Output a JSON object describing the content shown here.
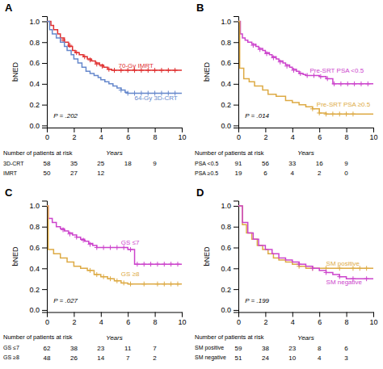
{
  "chart_data": [
    {
      "type": "step",
      "title": "A",
      "ylabel": "bNED",
      "xlabel": "Years",
      "pvalue": "P = .202",
      "xlim": [
        0,
        10
      ],
      "ylim": [
        -0.02,
        1.05
      ],
      "xticks": [
        0,
        2,
        4,
        6,
        8,
        10
      ],
      "yticks": [
        {
          "value": 0.0,
          "label": "0.0"
        },
        0.2,
        0.4,
        0.6,
        0.8,
        {
          "value": 1.0,
          "label": "1.0"
        }
      ],
      "grid": false,
      "series": [
        {
          "name": "70-Gy IMRT",
          "color": "#e03030",
          "x": [
            0,
            0.3,
            0.5,
            0.8,
            1.0,
            1.3,
            1.6,
            1.9,
            2.1,
            2.4,
            2.7,
            3.0,
            3.3,
            3.6,
            3.9,
            4.2,
            4.5,
            4.8,
            5.0,
            10.0
          ],
          "values": [
            1.0,
            0.96,
            0.92,
            0.88,
            0.84,
            0.8,
            0.76,
            0.72,
            0.7,
            0.68,
            0.66,
            0.64,
            0.62,
            0.6,
            0.58,
            0.56,
            0.54,
            0.53,
            0.53,
            0.53
          ],
          "censors_x": [
            1.2,
            1.7,
            2.2,
            2.8,
            3.2,
            3.7,
            4.1,
            4.6,
            5.0,
            5.5,
            6.0,
            6.5,
            7.0,
            7.5,
            8.0,
            8.5,
            9.0,
            9.5
          ],
          "censors_y": [
            0.82,
            0.77,
            0.7,
            0.66,
            0.63,
            0.59,
            0.57,
            0.54,
            0.53,
            0.53,
            0.53,
            0.53,
            0.53,
            0.53,
            0.53,
            0.53,
            0.53,
            0.53
          ],
          "label_x": 5.3,
          "label_y": 0.57
        },
        {
          "name": "64-Gy 3D-CRT",
          "color": "#6688cc",
          "x": [
            0,
            0.2,
            0.4,
            0.7,
            1.0,
            1.3,
            1.5,
            1.8,
            2.0,
            2.3,
            2.6,
            2.9,
            3.2,
            3.5,
            3.8,
            4.0,
            4.3,
            4.6,
            4.9,
            5.2,
            5.5,
            5.8,
            6.0,
            6.5,
            7.0,
            10.0
          ],
          "values": [
            1.0,
            0.92,
            0.88,
            0.84,
            0.8,
            0.76,
            0.72,
            0.68,
            0.64,
            0.6,
            0.56,
            0.52,
            0.5,
            0.48,
            0.46,
            0.44,
            0.42,
            0.4,
            0.38,
            0.36,
            0.34,
            0.32,
            0.31,
            0.31,
            0.31,
            0.31
          ],
          "censors_x": [
            5.5,
            6.0,
            6.5,
            7.0,
            7.5,
            8.0,
            8.5,
            9.0,
            9.5
          ],
          "censors_y": [
            0.34,
            0.31,
            0.31,
            0.31,
            0.31,
            0.31,
            0.31,
            0.31,
            0.31
          ],
          "label_x": 6.5,
          "label_y": 0.26
        }
      ],
      "risk_table": {
        "title": "Number of patients at risk",
        "labels": [
          "3D-CRT",
          "IMRT"
        ],
        "times": [
          0,
          2,
          4,
          6,
          8
        ],
        "values": [
          [
            58,
            35,
            25,
            18,
            9
          ],
          [
            50,
            27,
            12,
            null,
            null
          ]
        ]
      }
    },
    {
      "type": "step",
      "title": "B",
      "ylabel": "bNED",
      "xlabel": "Years",
      "pvalue": "P = .014",
      "xlim": [
        0,
        10
      ],
      "ylim": [
        -0.02,
        1.05
      ],
      "xticks": [
        0,
        2,
        4,
        6,
        8,
        10
      ],
      "yticks": [
        {
          "value": 0.0,
          "label": "0.0"
        },
        0.2,
        0.4,
        0.6,
        0.8,
        {
          "value": 1.0,
          "label": "1.0"
        }
      ],
      "grid": false,
      "series": [
        {
          "name": "Pre-SRT PSA <0.5",
          "color": "#cc44cc",
          "x": [
            0,
            0.15,
            0.3,
            0.5,
            0.7,
            1.0,
            1.3,
            1.5,
            1.8,
            2.0,
            2.3,
            2.5,
            2.8,
            3.0,
            3.3,
            3.5,
            3.8,
            4.0,
            4.3,
            4.5,
            4.8,
            5.0,
            5.5,
            6.0,
            6.5,
            7.0,
            7.5,
            8.0,
            10.0
          ],
          "values": [
            1.0,
            0.88,
            0.84,
            0.82,
            0.8,
            0.78,
            0.76,
            0.74,
            0.72,
            0.7,
            0.68,
            0.66,
            0.64,
            0.62,
            0.6,
            0.58,
            0.56,
            0.54,
            0.52,
            0.5,
            0.49,
            0.48,
            0.48,
            0.47,
            0.45,
            0.4,
            0.4,
            0.4,
            0.4
          ],
          "censors_x": [
            1.1,
            1.6,
            2.1,
            2.6,
            3.1,
            3.6,
            4.1,
            4.6,
            5.1,
            5.6,
            6.1,
            6.6,
            7.1,
            7.6,
            8.1,
            8.6,
            9.1,
            9.6
          ],
          "censors_y": [
            0.77,
            0.73,
            0.69,
            0.65,
            0.61,
            0.57,
            0.53,
            0.5,
            0.48,
            0.48,
            0.47,
            0.45,
            0.4,
            0.4,
            0.4,
            0.4,
            0.4,
            0.4
          ],
          "label_x": 5.3,
          "label_y": 0.52
        },
        {
          "name": "Pre-SRT PSA ≥0.5",
          "color": "#ddaa44",
          "x": [
            0,
            0.1,
            0.4,
            0.8,
            1.2,
            1.8,
            2.2,
            2.8,
            3.5,
            4.0,
            4.5,
            5.0,
            5.5,
            6.0,
            6.5,
            7.0,
            10.0
          ],
          "values": [
            1.0,
            0.55,
            0.45,
            0.42,
            0.38,
            0.34,
            0.3,
            0.28,
            0.24,
            0.22,
            0.2,
            0.18,
            0.16,
            0.12,
            0.11,
            0.11,
            0.11
          ],
          "censors_x": [
            5.5,
            6.0,
            6.5,
            7.0,
            7.5,
            8.0,
            8.5
          ],
          "censors_y": [
            0.16,
            0.12,
            0.11,
            0.11,
            0.11,
            0.11,
            0.11
          ],
          "label_x": 5.8,
          "label_y": 0.2
        }
      ],
      "risk_table": {
        "title": "Number of patients at risk",
        "labels": [
          "PSA <0.5",
          "PSA ≥0.5"
        ],
        "times": [
          0,
          2,
          4,
          6,
          8
        ],
        "values": [
          [
            91,
            56,
            33,
            16,
            9
          ],
          [
            19,
            6,
            4,
            2,
            0
          ]
        ]
      }
    },
    {
      "type": "step",
      "title": "C",
      "ylabel": "bNED",
      "xlabel": "Years",
      "pvalue": "P = .027",
      "xlim": [
        0,
        10
      ],
      "ylim": [
        -0.02,
        1.05
      ],
      "xticks": [
        0,
        2,
        4,
        6,
        8,
        10
      ],
      "yticks": [
        {
          "value": 0.0,
          "label": "0.0"
        },
        0.2,
        0.4,
        0.6,
        0.8,
        {
          "value": 1.0,
          "label": "1.0"
        }
      ],
      "grid": false,
      "series": [
        {
          "name": "GS ≤7",
          "color": "#cc44cc",
          "x": [
            0,
            0.1,
            0.4,
            0.7,
            1.0,
            1.3,
            1.6,
            1.9,
            2.2,
            2.5,
            2.8,
            3.1,
            3.4,
            3.7,
            4.0,
            4.5,
            5.0,
            5.5,
            6.0,
            6.5,
            7.0,
            7.5,
            8.0,
            9.0,
            10.0
          ],
          "values": [
            1.0,
            0.88,
            0.84,
            0.8,
            0.78,
            0.76,
            0.74,
            0.72,
            0.7,
            0.68,
            0.66,
            0.64,
            0.62,
            0.6,
            0.6,
            0.6,
            0.6,
            0.6,
            0.58,
            0.44,
            0.44,
            0.44,
            0.44,
            0.44,
            0.44
          ],
          "censors_x": [
            1.2,
            1.7,
            2.2,
            2.7,
            3.2,
            3.7,
            4.2,
            4.7,
            5.2,
            5.7,
            6.2,
            6.7,
            7.2,
            7.7,
            8.2,
            8.7,
            9.2,
            9.7
          ],
          "censors_y": [
            0.77,
            0.73,
            0.7,
            0.67,
            0.63,
            0.6,
            0.6,
            0.6,
            0.6,
            0.6,
            0.58,
            0.44,
            0.44,
            0.44,
            0.44,
            0.44,
            0.44,
            0.44
          ],
          "label_x": 5.5,
          "label_y": 0.64
        },
        {
          "name": "GS ≥8",
          "color": "#ddaa44",
          "x": [
            0,
            0.1,
            0.5,
            1.0,
            1.5,
            2.0,
            2.5,
            3.0,
            3.5,
            4.0,
            4.5,
            5.0,
            5.5,
            6.0,
            6.5,
            7.0,
            7.5,
            8.0,
            10.0
          ],
          "values": [
            1.0,
            0.58,
            0.54,
            0.5,
            0.46,
            0.42,
            0.4,
            0.38,
            0.34,
            0.32,
            0.3,
            0.28,
            0.26,
            0.25,
            0.25,
            0.25,
            0.25,
            0.25,
            0.25
          ],
          "censors_x": [
            3.2,
            3.7,
            4.2,
            4.7,
            5.2,
            5.7,
            6.2,
            7.2,
            8.2,
            8.7,
            9.2,
            9.7
          ],
          "censors_y": [
            0.38,
            0.34,
            0.32,
            0.3,
            0.28,
            0.26,
            0.25,
            0.25,
            0.25,
            0.25,
            0.25,
            0.25
          ],
          "label_x": 5.5,
          "label_y": 0.34
        }
      ],
      "risk_table": {
        "title": "Number of patients at risk",
        "labels": [
          "GS ≤7",
          "GS ≥8"
        ],
        "times": [
          0,
          2,
          4,
          6,
          8
        ],
        "values": [
          [
            62,
            38,
            23,
            11,
            7
          ],
          [
            48,
            26,
            14,
            7,
            2
          ]
        ]
      }
    },
    {
      "type": "step",
      "title": "D",
      "ylabel": "bNED",
      "xlabel": "Years",
      "pvalue": "P = .199",
      "xlim": [
        0,
        10
      ],
      "ylim": [
        -0.02,
        1.05
      ],
      "xticks": [
        0,
        2,
        4,
        6,
        8,
        10
      ],
      "yticks": [
        {
          "value": 0.0,
          "label": "0.0"
        },
        0.2,
        0.4,
        0.6,
        0.8,
        {
          "value": 1.0,
          "label": "1.0"
        }
      ],
      "grid": false,
      "series": [
        {
          "name": "SM positive",
          "color": "#ddaa44",
          "x": [
            0,
            0.3,
            0.6,
            1.0,
            1.4,
            1.8,
            2.2,
            2.6,
            3.0,
            3.5,
            4.0,
            4.5,
            5.0,
            5.5,
            6.0,
            6.5,
            7.0,
            8.0,
            10.0
          ],
          "values": [
            1.0,
            0.82,
            0.74,
            0.68,
            0.62,
            0.58,
            0.54,
            0.5,
            0.48,
            0.46,
            0.44,
            0.42,
            0.4,
            0.4,
            0.4,
            0.4,
            0.4,
            0.4,
            0.4
          ],
          "censors_x": [
            4.5,
            5.5,
            6.5,
            7.5,
            8.5,
            9.0,
            9.5
          ],
          "censors_y": [
            0.42,
            0.4,
            0.4,
            0.4,
            0.4,
            0.4,
            0.4
          ],
          "label_x": 6.5,
          "label_y": 0.44
        },
        {
          "name": "SM negative",
          "color": "#cc44cc",
          "x": [
            0,
            0.3,
            0.7,
            1.1,
            1.5,
            2.0,
            2.5,
            3.0,
            3.5,
            4.0,
            4.5,
            5.0,
            5.5,
            6.0,
            6.5,
            7.0,
            7.5,
            8.0,
            9.0,
            10.0
          ],
          "values": [
            1.0,
            0.84,
            0.74,
            0.68,
            0.62,
            0.58,
            0.54,
            0.5,
            0.48,
            0.46,
            0.44,
            0.42,
            0.4,
            0.38,
            0.36,
            0.34,
            0.32,
            0.3,
            0.3,
            0.3
          ],
          "censors_x": [
            4.5,
            5.5,
            6.5,
            7.5,
            8.5,
            9.5
          ],
          "censors_y": [
            0.44,
            0.4,
            0.36,
            0.32,
            0.3,
            0.3
          ],
          "label_x": 6.5,
          "label_y": 0.26
        }
      ],
      "risk_table": {
        "title": "Number of patients at risk",
        "labels": [
          "SM positive",
          "SM negative"
        ],
        "times": [
          0,
          2,
          4,
          6,
          8
        ],
        "values": [
          [
            59,
            38,
            23,
            8,
            6
          ],
          [
            51,
            24,
            10,
            4,
            3
          ]
        ]
      }
    }
  ]
}
